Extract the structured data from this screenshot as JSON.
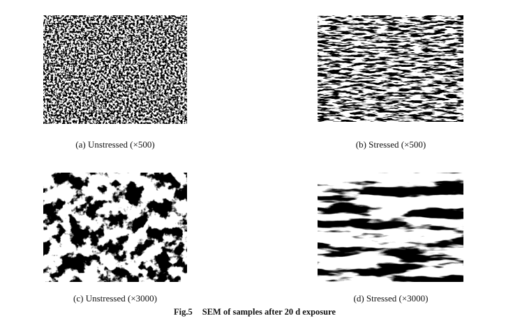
{
  "panels": [
    {
      "label": "(a) Unstressed (×500)"
    },
    {
      "label": "(b) Stressed (×500)"
    },
    {
      "label": "(c) Unstressed (×3000)"
    },
    {
      "label": "(d) Stressed (×3000)"
    }
  ],
  "figure": {
    "number": "Fig.5",
    "title": "SEM of samples after 20 d exposure"
  }
}
